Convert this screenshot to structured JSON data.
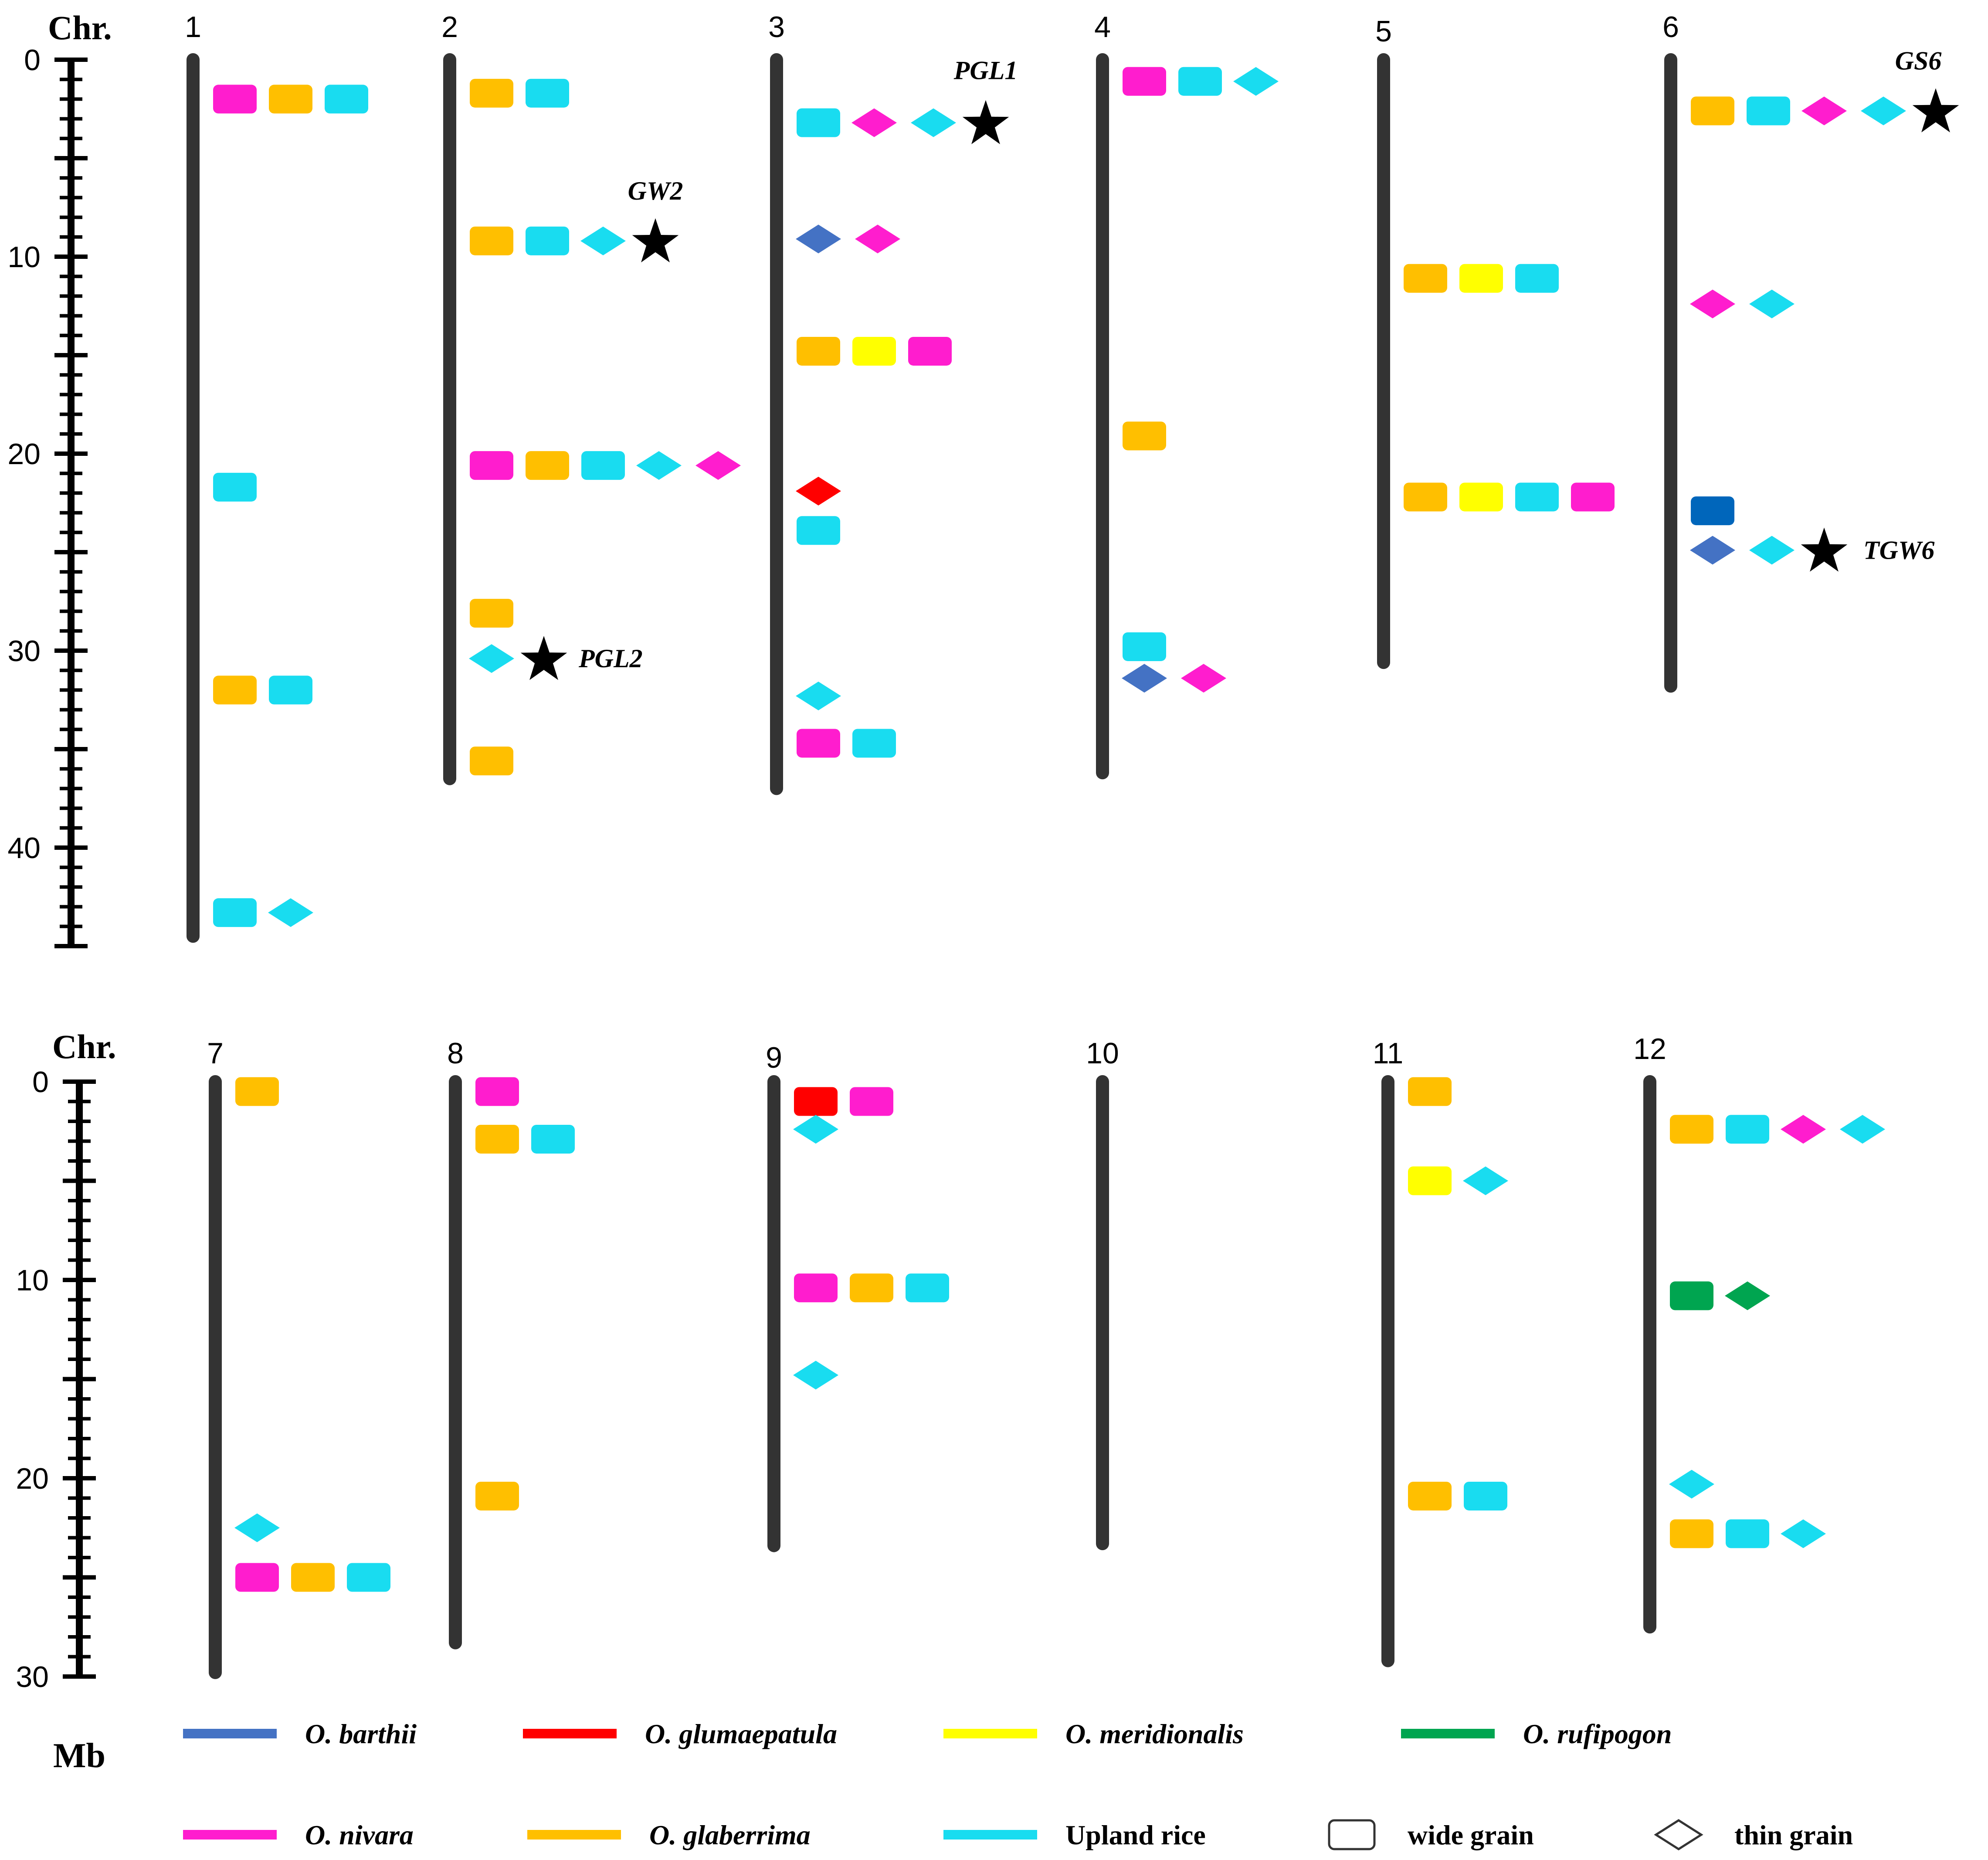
{
  "colors": {
    "O. barthii": "#4472c4",
    "O. glumaepatula": "#ff0000",
    "O. meridionalis": "#ffff00",
    "O. rufipogon": "#00a550",
    "O. nivara": "#ff1dce",
    "O. glaberrima": "#ffbf00",
    "Upland rice": "#19dcf0",
    "chromosome": "#333333",
    "axis": "#000000",
    "dark_blue_variant": "#0066bb"
  },
  "axis": {
    "chr_label": "Chr.",
    "unit_label": "Mb",
    "top_panel_ticks": [
      "0",
      "10",
      "20",
      "30",
      "40"
    ],
    "bottom_panel_ticks": [
      "0",
      "10",
      "20",
      "30"
    ],
    "top_panel_max": 45,
    "bottom_panel_max": 30
  },
  "legend": {
    "items": [
      {
        "label": "O. barthii",
        "color": "#4472c4",
        "shape": "line"
      },
      {
        "label": "O. glumaepatula",
        "color": "#ff0000",
        "shape": "line"
      },
      {
        "label": "O. meridionalis",
        "color": "#ffff00",
        "shape": "line"
      },
      {
        "label": "O. rufipogon",
        "color": "#00a550",
        "shape": "line"
      },
      {
        "label": "O. nivara",
        "color": "#ff1dce",
        "shape": "line"
      },
      {
        "label": "O. glaberrima",
        "color": "#ffbf00",
        "shape": "line"
      },
      {
        "label": "Upland rice",
        "color": "#19dcf0",
        "shape": "line"
      },
      {
        "label": "wide grain",
        "shape": "rect"
      },
      {
        "label": "thin grain",
        "shape": "diamond"
      }
    ]
  },
  "chart_data": {
    "type": "chromosome_map",
    "unit": "Mb",
    "chromosomes": [
      {
        "label": "1",
        "length": 44.5,
        "panel": 0,
        "loci": [
          {
            "pos": 2,
            "markers": [
              [
                "rect",
                "O. nivara"
              ],
              [
                "rect",
                "O. glaberrima"
              ],
              [
                "rect",
                "Upland rice"
              ]
            ]
          },
          {
            "pos": 21.7,
            "markers": [
              [
                "rect",
                "Upland rice"
              ]
            ]
          },
          {
            "pos": 32,
            "markers": [
              [
                "rect",
                "O. glaberrima"
              ],
              [
                "rect",
                "Upland rice"
              ]
            ]
          },
          {
            "pos": 43.3,
            "markers": [
              [
                "rect",
                "Upland rice"
              ],
              [
                "diamond",
                "Upland rice"
              ]
            ]
          }
        ]
      },
      {
        "label": "2",
        "length": 36.5,
        "panel": 0,
        "loci": [
          {
            "pos": 1.7,
            "markers": [
              [
                "rect",
                "O. glaberrima"
              ],
              [
                "rect",
                "Upland rice"
              ]
            ]
          },
          {
            "pos": 9.2,
            "markers": [
              [
                "rect",
                "O. glaberrima"
              ],
              [
                "rect",
                "Upland rice"
              ],
              [
                "diamond",
                "Upland rice"
              ]
            ],
            "gene": "GW2"
          },
          {
            "pos": 20.6,
            "markers": [
              [
                "rect",
                "O. nivara"
              ],
              [
                "rect",
                "O. glaberrima"
              ],
              [
                "rect",
                "Upland rice"
              ],
              [
                "diamond",
                "Upland rice"
              ],
              [
                "diamond",
                "O. nivara"
              ]
            ]
          },
          {
            "pos": 28.1,
            "markers": [
              [
                "rect",
                "O. glaberrima"
              ]
            ]
          },
          {
            "pos": 30.4,
            "markers": [
              [
                "diamond",
                "Upland rice"
              ]
            ],
            "gene": "PGL2"
          },
          {
            "pos": 35.6,
            "markers": [
              [
                "rect",
                "O. glaberrima"
              ]
            ]
          }
        ]
      },
      {
        "label": "3",
        "length": 37,
        "panel": 0,
        "loci": [
          {
            "pos": 3.2,
            "markers": [
              [
                "rect",
                "Upland rice"
              ],
              [
                "diamond",
                "O. nivara"
              ],
              [
                "diamond",
                "Upland rice"
              ]
            ],
            "gene": "PGL1"
          },
          {
            "pos": 9.1,
            "markers": [
              [
                "diamond",
                "O. barthii"
              ],
              [
                "diamond",
                "O. nivara"
              ]
            ]
          },
          {
            "pos": 14.8,
            "markers": [
              [
                "rect",
                "O. glaberrima"
              ],
              [
                "rect",
                "O. meridionalis"
              ],
              [
                "rect",
                "O. nivara"
              ]
            ]
          },
          {
            "pos": 21.9,
            "markers": [
              [
                "diamond",
                "O. glumaepatula"
              ]
            ]
          },
          {
            "pos": 23.9,
            "markers": [
              [
                "rect",
                "Upland rice"
              ]
            ]
          },
          {
            "pos": 32.3,
            "markers": [
              [
                "diamond",
                "Upland rice"
              ]
            ]
          },
          {
            "pos": 34.7,
            "markers": [
              [
                "rect",
                "O. nivara"
              ],
              [
                "rect",
                "Upland rice"
              ]
            ]
          }
        ]
      },
      {
        "label": "4",
        "length": 36.2,
        "panel": 0,
        "loci": [
          {
            "pos": 1.1,
            "markers": [
              [
                "rect",
                "O. nivara"
              ],
              [
                "rect",
                "Upland rice"
              ],
              [
                "diamond",
                "Upland rice"
              ]
            ]
          },
          {
            "pos": 19.1,
            "markers": [
              [
                "rect",
                "O. glaberrima"
              ]
            ]
          },
          {
            "pos": 29.8,
            "markers": [
              [
                "rect",
                "Upland rice"
              ]
            ]
          },
          {
            "pos": 31.4,
            "markers": [
              [
                "diamond",
                "O. barthii"
              ],
              [
                "diamond",
                "O. nivara"
              ]
            ]
          }
        ]
      },
      {
        "label": "5",
        "length": 30.6,
        "panel": 0,
        "loci": [
          {
            "pos": 11.1,
            "markers": [
              [
                "rect",
                "O. glaberrima"
              ],
              [
                "rect",
                "O. meridionalis"
              ],
              [
                "rect",
                "Upland rice"
              ]
            ]
          },
          {
            "pos": 22.2,
            "markers": [
              [
                "rect",
                "O. glaberrima"
              ],
              [
                "rect",
                "O. meridionalis"
              ],
              [
                "rect",
                "Upland rice"
              ],
              [
                "rect",
                "O. nivara"
              ]
            ]
          }
        ]
      },
      {
        "label": "6",
        "length": 31.8,
        "panel": 0,
        "loci": [
          {
            "pos": 2.6,
            "markers": [
              [
                "rect",
                "O. glaberrima"
              ],
              [
                "rect",
                "Upland rice"
              ],
              [
                "diamond",
                "O. nivara"
              ],
              [
                "diamond",
                "Upland rice"
              ]
            ],
            "gene": "GS6"
          },
          {
            "pos": 12.4,
            "markers": [
              [
                "diamond",
                "O. nivara"
              ],
              [
                "diamond",
                "Upland rice"
              ]
            ]
          },
          {
            "pos": 22.9,
            "markers": [
              [
                "rect",
                "dark_blue_variant"
              ]
            ]
          },
          {
            "pos": 24.9,
            "markers": [
              [
                "diamond",
                "O. barthii"
              ],
              [
                "diamond",
                "Upland rice"
              ]
            ],
            "gene": "TGW6"
          }
        ]
      },
      {
        "label": "7",
        "length": 29.8,
        "panel": 1,
        "loci": [
          {
            "pos": 0.5,
            "markers": [
              [
                "rect",
                "O. glaberrima"
              ]
            ]
          },
          {
            "pos": 22.5,
            "markers": [
              [
                "diamond",
                "Upland rice"
              ]
            ]
          },
          {
            "pos": 25,
            "markers": [
              [
                "rect",
                "O. nivara"
              ],
              [
                "rect",
                "O. glaberrima"
              ],
              [
                "rect",
                "Upland rice"
              ]
            ]
          }
        ]
      },
      {
        "label": "8",
        "length": 28.3,
        "panel": 1,
        "loci": [
          {
            "pos": 0.5,
            "markers": [
              [
                "rect",
                "O. nivara"
              ]
            ]
          },
          {
            "pos": 2.9,
            "markers": [
              [
                "rect",
                "O. glaberrima"
              ],
              [
                "rect",
                "Upland rice"
              ]
            ]
          },
          {
            "pos": 20.9,
            "markers": [
              [
                "rect",
                "O. glaberrima"
              ]
            ]
          }
        ]
      },
      {
        "label": "9",
        "length": 23.4,
        "panel": 1,
        "loci": [
          {
            "pos": 1,
            "markers": [
              [
                "rect",
                "O. glumaepatula"
              ],
              [
                "rect",
                "O. nivara"
              ]
            ]
          },
          {
            "pos": 2.4,
            "markers": [
              [
                "diamond",
                "Upland rice"
              ]
            ]
          },
          {
            "pos": 10.4,
            "markers": [
              [
                "rect",
                "O. nivara"
              ],
              [
                "rect",
                "O. glaberrima"
              ],
              [
                "rect",
                "Upland rice"
              ]
            ]
          },
          {
            "pos": 14.8,
            "markers": [
              [
                "diamond",
                "Upland rice"
              ]
            ]
          }
        ]
      },
      {
        "label": "10",
        "length": 23.3,
        "panel": 1,
        "loci": []
      },
      {
        "label": "11",
        "length": 29.2,
        "panel": 1,
        "loci": [
          {
            "pos": 0.5,
            "markers": [
              [
                "rect",
                "O. glaberrima"
              ]
            ]
          },
          {
            "pos": 5,
            "markers": [
              [
                "rect",
                "O. meridionalis"
              ],
              [
                "diamond",
                "Upland rice"
              ]
            ]
          },
          {
            "pos": 20.9,
            "markers": [
              [
                "rect",
                "O. glaberrima"
              ],
              [
                "rect",
                "Upland rice"
              ]
            ]
          }
        ]
      },
      {
        "label": "12",
        "length": 27.5,
        "panel": 1,
        "loci": [
          {
            "pos": 2.4,
            "markers": [
              [
                "rect",
                "O. glaberrima"
              ],
              [
                "rect",
                "Upland rice"
              ],
              [
                "diamond",
                "O. nivara"
              ],
              [
                "diamond",
                "Upland rice"
              ]
            ]
          },
          {
            "pos": 10.8,
            "markers": [
              [
                "rect",
                "O. rufipogon"
              ],
              [
                "diamond",
                "O. rufipogon"
              ]
            ]
          },
          {
            "pos": 20.3,
            "markers": [
              [
                "diamond",
                "Upland rice"
              ]
            ]
          },
          {
            "pos": 22.8,
            "markers": [
              [
                "rect",
                "O. glaberrima"
              ],
              [
                "rect",
                "Upland rice"
              ],
              [
                "diamond",
                "Upland rice"
              ]
            ]
          }
        ]
      }
    ]
  }
}
